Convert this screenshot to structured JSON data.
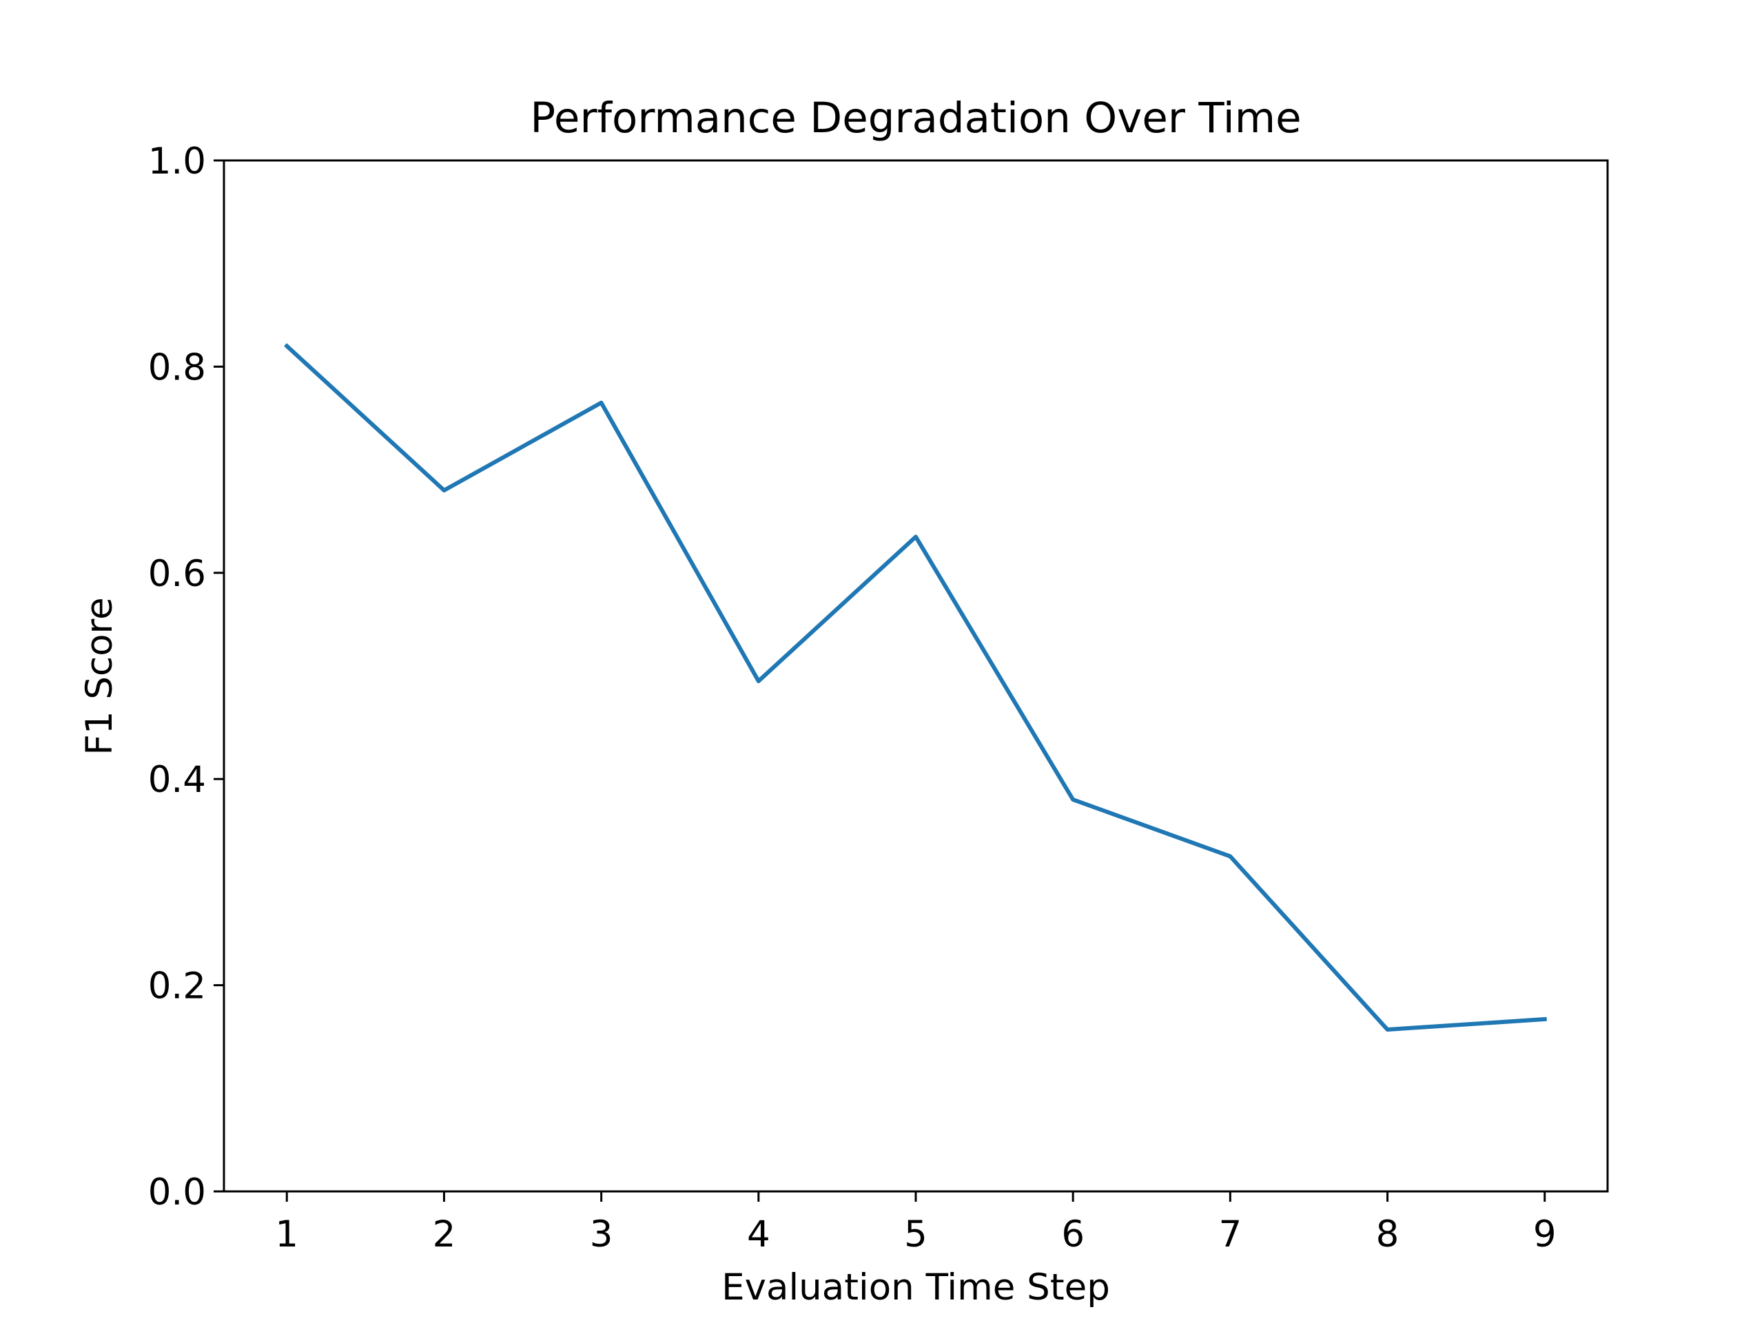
{
  "chart_data": {
    "type": "line",
    "title": "Performance Degradation Over Time",
    "xlabel": "Evaluation Time Step",
    "ylabel": "F1 Score",
    "x": [
      1,
      2,
      3,
      4,
      5,
      6,
      7,
      8,
      9
    ],
    "xticks": [
      "1",
      "2",
      "3",
      "4",
      "5",
      "6",
      "7",
      "8",
      "9"
    ],
    "yticks": [
      "0.0",
      "0.2",
      "0.4",
      "0.6",
      "0.8",
      "1.0"
    ],
    "ytick_values": [
      0.0,
      0.2,
      0.4,
      0.6,
      0.8,
      1.0
    ],
    "xlim": [
      0.6,
      9.4
    ],
    "ylim": [
      0.0,
      1.0
    ],
    "grid": false,
    "series": [
      {
        "name": "F1 Score",
        "color": "#1f77b4",
        "values": [
          0.82,
          0.68,
          0.765,
          0.495,
          0.635,
          0.38,
          0.325,
          0.157,
          0.167
        ]
      }
    ]
  }
}
